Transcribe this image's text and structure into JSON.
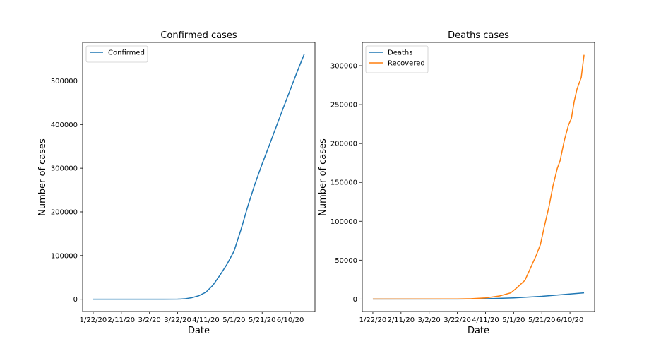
{
  "chart_data": [
    {
      "type": "line",
      "title": "Confirmed cases",
      "xlabel": "Date",
      "ylabel": "Number of cases",
      "x_ticks": [
        "1/22/20",
        "2/11/20",
        "3/2/20",
        "3/22/20",
        "4/11/20",
        "5/1/20",
        "5/21/20",
        "6/10/20"
      ],
      "y_ticks": [
        "0",
        "100000",
        "200000",
        "300000",
        "400000",
        "500000"
      ],
      "ylim": [
        -28000,
        588000
      ],
      "legend_position": "top-left",
      "grid": false,
      "series": [
        {
          "name": "Confirmed",
          "color": "#1f77b4",
          "points": [
            [
              "1/22/20",
              0
            ],
            [
              "2/11/20",
              0
            ],
            [
              "3/2/20",
              0
            ],
            [
              "3/12/20",
              0
            ],
            [
              "3/22/20",
              200
            ],
            [
              "3/27/20",
              1000
            ],
            [
              "4/1/20",
              3500
            ],
            [
              "4/6/20",
              8000
            ],
            [
              "4/11/20",
              16000
            ],
            [
              "4/16/20",
              32000
            ],
            [
              "4/21/20",
              55000
            ],
            [
              "4/26/20",
              80000
            ],
            [
              "5/1/20",
              110000
            ],
            [
              "5/6/20",
              160000
            ],
            [
              "5/11/20",
              215000
            ],
            [
              "5/16/20",
              265000
            ],
            [
              "5/21/20",
              310000
            ],
            [
              "5/26/20",
              352000
            ],
            [
              "5/31/20",
              395000
            ],
            [
              "6/5/20",
              438000
            ],
            [
              "6/10/20",
              480000
            ],
            [
              "6/15/20",
              522000
            ],
            [
              "6/20/20",
              562000
            ]
          ]
        }
      ]
    },
    {
      "type": "line",
      "title": "Deaths cases",
      "xlabel": "Date",
      "ylabel": "Number of cases",
      "x_ticks": [
        "1/22/20",
        "2/11/20",
        "3/2/20",
        "3/22/20",
        "4/11/20",
        "5/1/20",
        "5/21/20",
        "6/10/20"
      ],
      "y_ticks": [
        "0",
        "50000",
        "100000",
        "150000",
        "200000",
        "250000",
        "300000"
      ],
      "ylim": [
        -16000,
        330000
      ],
      "legend_position": "top-left",
      "grid": false,
      "series": [
        {
          "name": "Deaths",
          "color": "#1f77b4",
          "points": [
            [
              "1/22/20",
              0
            ],
            [
              "3/22/20",
              0
            ],
            [
              "4/11/20",
              300
            ],
            [
              "5/1/20",
              1500
            ],
            [
              "5/21/20",
              3500
            ],
            [
              "6/10/20",
              6500
            ],
            [
              "6/20/20",
              8000
            ]
          ]
        },
        {
          "name": "Recovered",
          "color": "#ff7f0e",
          "points": [
            [
              "1/22/20",
              0
            ],
            [
              "3/22/20",
              100
            ],
            [
              "4/1/20",
              500
            ],
            [
              "4/11/20",
              1500
            ],
            [
              "4/21/20",
              4000
            ],
            [
              "4/29/20",
              8000
            ],
            [
              "5/3/20",
              14000
            ],
            [
              "5/9/20",
              24000
            ],
            [
              "5/13/20",
              40000
            ],
            [
              "5/17/20",
              56000
            ],
            [
              "5/20/20",
              70000
            ],
            [
              "5/23/20",
              95000
            ],
            [
              "5/26/20",
              118000
            ],
            [
              "5/29/20",
              146000
            ],
            [
              "6/1/20",
              168000
            ],
            [
              "6/3/20",
              178000
            ],
            [
              "6/6/20",
              204000
            ],
            [
              "6/9/20",
              224000
            ],
            [
              "6/11/20",
              232000
            ],
            [
              "6/13/20",
              254000
            ],
            [
              "6/15/20",
              270000
            ],
            [
              "6/18/20",
              285000
            ],
            [
              "6/20/20",
              314000
            ]
          ]
        }
      ]
    }
  ]
}
